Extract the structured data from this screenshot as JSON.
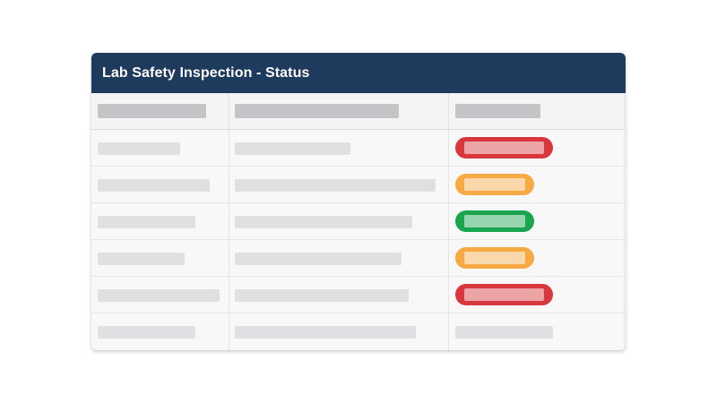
{
  "panel": {
    "title": "Lab Safety Inspection - Status"
  },
  "status_colors": {
    "critical": "#d8373d",
    "warning": "#f7a944",
    "pass": "#1aa54e",
    "header": "#1e3a5c"
  },
  "table": {
    "header_placeholder_count": 3,
    "rows": [
      {
        "status": "critical"
      },
      {
        "status": "warning"
      },
      {
        "status": "pass"
      },
      {
        "status": "warning"
      },
      {
        "status": "critical"
      },
      {
        "status": "none"
      }
    ]
  }
}
